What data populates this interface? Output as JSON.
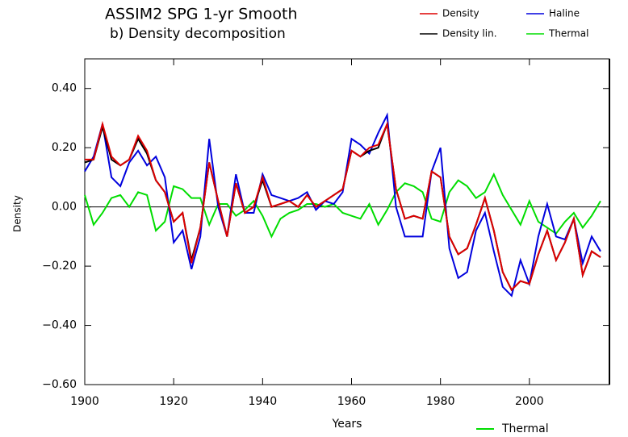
{
  "chart_data": {
    "type": "line",
    "title": "ASSIM2 SPG 1-yr Smooth",
    "subtitle": "b) Density decomposition",
    "x_label": "Years",
    "y_label": "Density",
    "x": [
      1900,
      1902,
      1904,
      1906,
      1908,
      1910,
      1912,
      1914,
      1916,
      1918,
      1920,
      1922,
      1924,
      1926,
      1928,
      1930,
      1932,
      1934,
      1936,
      1938,
      1940,
      1942,
      1944,
      1946,
      1948,
      1950,
      1952,
      1954,
      1956,
      1958,
      1960,
      1962,
      1964,
      1966,
      1968,
      1970,
      1972,
      1974,
      1976,
      1978,
      1980,
      1982,
      1984,
      1986,
      1988,
      1990,
      1992,
      1994,
      1996,
      1998,
      2000,
      2002,
      2004,
      2006,
      2008,
      2010,
      2012,
      2014,
      2016
    ],
    "series": [
      {
        "name": "Density lin.",
        "color": "#000000",
        "values": [
          0.15,
          0.16,
          0.27,
          0.16,
          0.14,
          0.16,
          0.23,
          0.18,
          0.09,
          0.05,
          -0.05,
          -0.02,
          -0.18,
          -0.07,
          0.15,
          0.02,
          -0.1,
          0.08,
          -0.02,
          0.0,
          0.09,
          0.0,
          0.01,
          0.02,
          0.0,
          0.04,
          0.0,
          0.02,
          0.04,
          0.06,
          0.19,
          0.17,
          0.19,
          0.2,
          0.28,
          0.06,
          -0.04,
          -0.03,
          -0.04,
          0.12,
          0.1,
          -0.1,
          -0.16,
          -0.14,
          -0.06,
          0.03,
          -0.08,
          -0.22,
          -0.28,
          -0.25,
          -0.26,
          -0.16,
          -0.08,
          -0.18,
          -0.12,
          -0.04,
          -0.23,
          -0.15,
          -0.17
        ]
      },
      {
        "name": "Density",
        "color": "#dd0000",
        "values": [
          0.16,
          0.16,
          0.28,
          0.17,
          0.14,
          0.16,
          0.24,
          0.19,
          0.09,
          0.05,
          -0.05,
          -0.02,
          -0.19,
          -0.07,
          0.15,
          0.02,
          -0.1,
          0.08,
          -0.02,
          0.0,
          0.1,
          0.0,
          0.01,
          0.02,
          0.0,
          0.04,
          0.0,
          0.02,
          0.04,
          0.06,
          0.19,
          0.17,
          0.2,
          0.21,
          0.28,
          0.06,
          -0.04,
          -0.03,
          -0.04,
          0.12,
          0.1,
          -0.1,
          -0.16,
          -0.14,
          -0.06,
          0.03,
          -0.08,
          -0.22,
          -0.28,
          -0.25,
          -0.26,
          -0.16,
          -0.08,
          -0.18,
          -0.12,
          -0.04,
          -0.23,
          -0.15,
          -0.17
        ]
      },
      {
        "name": "Haline",
        "color": "#0000dd",
        "values": [
          0.12,
          0.17,
          0.28,
          0.1,
          0.07,
          0.15,
          0.19,
          0.14,
          0.17,
          0.1,
          -0.12,
          -0.08,
          -0.21,
          -0.1,
          0.23,
          0.0,
          -0.1,
          0.11,
          -0.02,
          -0.02,
          0.11,
          0.04,
          0.03,
          0.02,
          0.03,
          0.05,
          -0.01,
          0.02,
          0.01,
          0.05,
          0.23,
          0.21,
          0.18,
          0.25,
          0.31,
          0.0,
          -0.1,
          -0.1,
          -0.1,
          0.12,
          0.2,
          -0.14,
          -0.24,
          -0.22,
          -0.08,
          -0.02,
          -0.15,
          -0.27,
          -0.3,
          -0.18,
          -0.26,
          -0.1,
          0.01,
          -0.1,
          -0.11,
          -0.04,
          -0.19,
          -0.1,
          -0.15
        ]
      },
      {
        "name": "Thermal",
        "color": "#00dd00",
        "values": [
          0.04,
          -0.06,
          -0.02,
          0.03,
          0.04,
          0.0,
          0.05,
          0.04,
          -0.08,
          -0.05,
          0.07,
          0.06,
          0.03,
          0.03,
          -0.06,
          0.01,
          0.01,
          -0.03,
          -0.01,
          0.02,
          -0.03,
          -0.1,
          -0.04,
          -0.02,
          -0.01,
          0.01,
          0.01,
          0.0,
          0.01,
          -0.02,
          -0.03,
          -0.04,
          0.01,
          -0.06,
          -0.01,
          0.05,
          0.08,
          0.07,
          0.05,
          -0.04,
          -0.05,
          0.05,
          0.09,
          0.07,
          0.03,
          0.05,
          0.11,
          0.04,
          -0.01,
          -0.06,
          0.02,
          -0.05,
          -0.07,
          -0.09,
          -0.05,
          -0.02,
          -0.07,
          -0.03,
          0.02
        ]
      }
    ],
    "xlim": [
      1900,
      2018
    ],
    "ylim": [
      -0.6,
      0.5
    ],
    "xticks": [
      1900,
      1920,
      1940,
      1960,
      1980,
      2000
    ],
    "yticks": [
      {
        "value": -0.6,
        "label": "−0.60"
      },
      {
        "value": -0.4,
        "label": "−0.40"
      },
      {
        "value": -0.2,
        "label": "−0.20"
      },
      {
        "value": 0,
        "label": "0.00"
      },
      {
        "value": 0.2,
        "label": "0.20"
      },
      {
        "value": 0.4,
        "label": "0.40"
      }
    ],
    "grid": false
  }
}
